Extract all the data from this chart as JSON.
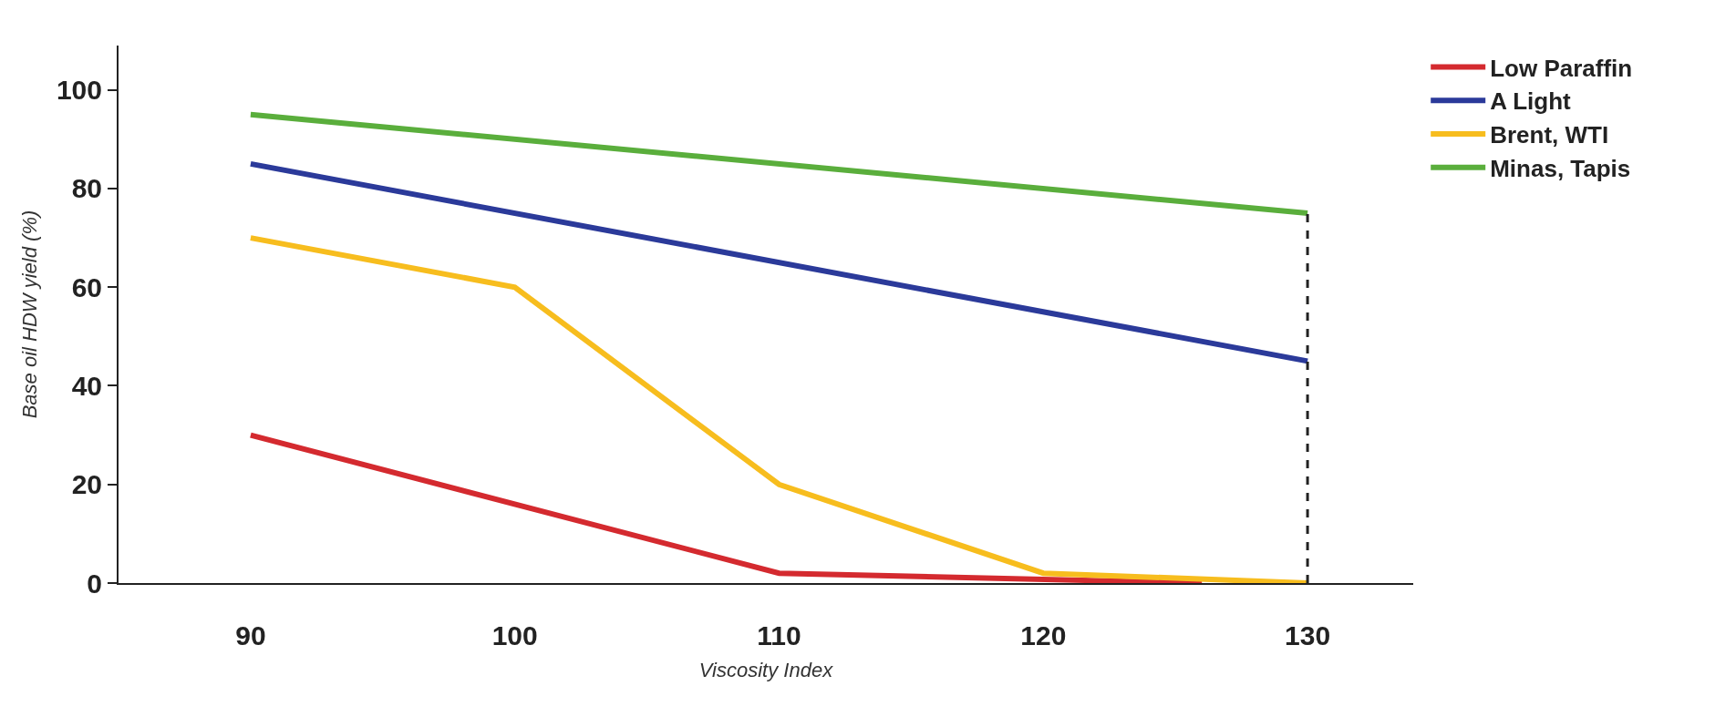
{
  "chart_data": {
    "type": "line",
    "xlabel": "Viscosity Index",
    "ylabel": "Base oil HDW yield (%)",
    "xlim": [
      85,
      134
    ],
    "xticks": [
      90,
      100,
      110,
      120,
      130
    ],
    "ylim": [
      0,
      109
    ],
    "yticks": [
      0,
      20,
      40,
      60,
      80,
      100
    ],
    "legend": "top right",
    "marker": "none",
    "line_style": "solid",
    "series": [
      {
        "name": "Low Paraffin",
        "color": "#d42a2f",
        "x": [
          90,
          110,
          126
        ],
        "values": [
          30,
          2,
          0
        ]
      },
      {
        "name": "A Light",
        "color": "#2b3a9a",
        "x": [
          90,
          130
        ],
        "values": [
          85,
          45
        ]
      },
      {
        "name": "Brent, WTI",
        "color": "#f7bd1e",
        "x": [
          90,
          100,
          110,
          120,
          130
        ],
        "values": [
          70,
          60,
          20,
          2,
          0
        ]
      },
      {
        "name": "Minas, Tapis",
        "color": "#5aae3c",
        "x": [
          90,
          130
        ],
        "values": [
          95,
          75
        ]
      },
      {
        "color": "#222222",
        "x": [
          130,
          130
        ],
        "values": [
          0,
          75
        ],
        "line_style": "dashed"
      }
    ]
  }
}
